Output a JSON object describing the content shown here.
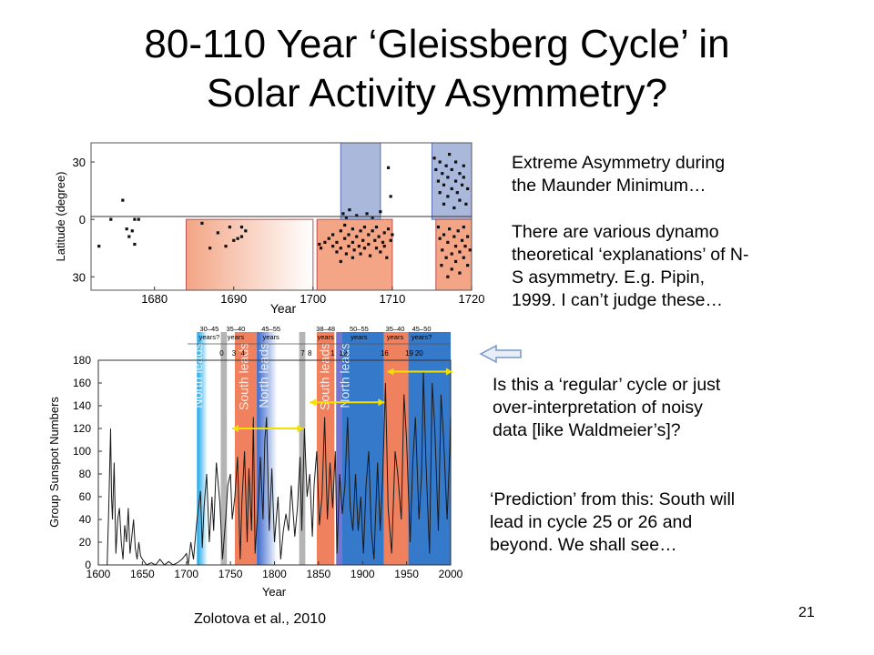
{
  "slide": {
    "title_line1": "80-110 Year ‘Gleissberg Cycle’ in",
    "title_line2": "Solar Activity Asymmetry?",
    "note1_line1": "Extreme Asymmetry during",
    "note1_line2": "the Maunder Minimum…",
    "note2_line1": "There are various dynamo",
    "note2_line2": "theoretical ‘explanations’ of N-",
    "note2_line3": "S asymmetry. E.g. Pipin,",
    "note2_line4": "1999. I can’t judge these…",
    "note3_line1": "Is this a ‘regular’ cycle or just",
    "note3_line2": "over-interpretation of noisy",
    "note3_line3": "data [like Waldmeier’s]?",
    "note4_line1": "‘Prediction’ from this: South will",
    "note4_line2": "lead in cycle 25 or 26 and",
    "note4_line3": "beyond. We shall see…",
    "citation": "Zolotova et al., 2010",
    "page_number": "21",
    "arrow_icon": "left-arrow-icon"
  },
  "chart_data": [
    {
      "type": "scatter",
      "xlabel": "Year",
      "ylabel": "Latitude (degree)",
      "xlim": [
        1672,
        1720
      ],
      "ylim": [
        -37,
        40
      ],
      "xticks": [
        "1680",
        "1690",
        "1700",
        "1710",
        "1720"
      ],
      "yticks": [
        "30",
        "0",
        "30"
      ],
      "shaded_regions": [
        {
          "hemisphere": "south",
          "from": 1684,
          "to": 1700,
          "color": "#f3a585"
        },
        {
          "hemisphere": "south",
          "from": 1700.5,
          "to": 1710,
          "color": "#f3a585"
        },
        {
          "hemisphere": "north",
          "from": 1703.5,
          "to": 1708.5,
          "color": "#aab8dc"
        },
        {
          "hemisphere": "north",
          "from": 1715,
          "to": 1720,
          "color": "#aab8dc"
        },
        {
          "hemisphere": "south",
          "from": 1715.5,
          "to": 1720,
          "color": "#f3a585"
        }
      ],
      "points": [
        [
          1673,
          -14
        ],
        [
          1674.5,
          0
        ],
        [
          1676,
          10
        ],
        [
          1676.5,
          -5
        ],
        [
          1676.8,
          -9
        ],
        [
          1677.2,
          -6
        ],
        [
          1677.5,
          -13
        ],
        [
          1677.5,
          0
        ],
        [
          1678,
          0
        ],
        [
          1686,
          -2
        ],
        [
          1687,
          -15
        ],
        [
          1688,
          -7
        ],
        [
          1689,
          -14
        ],
        [
          1689.5,
          -4
        ],
        [
          1690,
          -11
        ],
        [
          1690.5,
          -10
        ],
        [
          1691,
          -9
        ],
        [
          1691,
          -4
        ],
        [
          1691.5,
          -6
        ],
        [
          1700.8,
          -13
        ],
        [
          1701,
          -15
        ],
        [
          1701.5,
          -12
        ],
        [
          1702,
          -10
        ],
        [
          1702.5,
          -14
        ],
        [
          1702.5,
          -8
        ],
        [
          1703,
          -17
        ],
        [
          1703,
          -12
        ],
        [
          1703.5,
          -6
        ],
        [
          1703.5,
          -15
        ],
        [
          1703.5,
          -22
        ],
        [
          1704,
          -3
        ],
        [
          1704,
          -10
        ],
        [
          1704.2,
          -18
        ],
        [
          1704.5,
          -8
        ],
        [
          1704.5,
          -14
        ],
        [
          1705,
          -5
        ],
        [
          1705,
          -12
        ],
        [
          1705,
          -20
        ],
        [
          1705.2,
          -16
        ],
        [
          1705.5,
          -9
        ],
        [
          1705.8,
          -14
        ],
        [
          1706,
          -6
        ],
        [
          1706,
          -18
        ],
        [
          1706.3,
          -11
        ],
        [
          1706.5,
          -4
        ],
        [
          1706.5,
          -15
        ],
        [
          1707,
          -8
        ],
        [
          1707,
          -13
        ],
        [
          1707.2,
          -19
        ],
        [
          1707.5,
          -6
        ],
        [
          1707.8,
          -11
        ],
        [
          1708,
          -15
        ],
        [
          1708,
          -4
        ],
        [
          1708.3,
          -9
        ],
        [
          1708.5,
          -17
        ],
        [
          1708.8,
          -12
        ],
        [
          1709,
          -7
        ],
        [
          1709,
          -14
        ],
        [
          1709.3,
          -20
        ],
        [
          1709.5,
          -5
        ],
        [
          1709.8,
          -11
        ],
        [
          1710,
          -8
        ],
        [
          1703.8,
          3
        ],
        [
          1704.2,
          1
        ],
        [
          1704.6,
          5
        ],
        [
          1705.5,
          2
        ],
        [
          1706.8,
          3
        ],
        [
          1707.5,
          1
        ],
        [
          1708.5,
          4
        ],
        [
          1709.5,
          27
        ],
        [
          1709.8,
          12
        ],
        [
          1715.3,
          32
        ],
        [
          1715.5,
          26
        ],
        [
          1715.8,
          20
        ],
        [
          1716,
          30
        ],
        [
          1716,
          14
        ],
        [
          1716.3,
          24
        ],
        [
          1716.5,
          18
        ],
        [
          1716.5,
          8
        ],
        [
          1716.8,
          28
        ],
        [
          1717,
          22
        ],
        [
          1717,
          12
        ],
        [
          1717.2,
          34
        ],
        [
          1717.5,
          16
        ],
        [
          1717.5,
          26
        ],
        [
          1717.8,
          6
        ],
        [
          1718,
          20
        ],
        [
          1718,
          30
        ],
        [
          1718.2,
          14
        ],
        [
          1718.5,
          24
        ],
        [
          1718.5,
          10
        ],
        [
          1718.8,
          18
        ],
        [
          1719,
          28
        ],
        [
          1719,
          22
        ],
        [
          1719.3,
          8
        ],
        [
          1719.5,
          16
        ],
        [
          1715.8,
          -4
        ],
        [
          1716,
          -10
        ],
        [
          1716.3,
          -16
        ],
        [
          1716.5,
          -8
        ],
        [
          1716.8,
          -20
        ],
        [
          1717,
          -12
        ],
        [
          1717.2,
          -5
        ],
        [
          1717.5,
          -18
        ],
        [
          1717.5,
          -26
        ],
        [
          1717.8,
          -9
        ],
        [
          1718,
          -14
        ],
        [
          1718,
          -22
        ],
        [
          1718.3,
          -6
        ],
        [
          1718.5,
          -17
        ],
        [
          1718.5,
          -28
        ],
        [
          1718.8,
          -11
        ],
        [
          1719,
          -20
        ],
        [
          1719,
          -4
        ],
        [
          1719.2,
          -14
        ],
        [
          1719.5,
          -24
        ],
        [
          1719.5,
          -9
        ],
        [
          1719.8,
          -16
        ],
        [
          1717,
          -30
        ],
        [
          1716.2,
          -24
        ]
      ]
    },
    {
      "type": "line",
      "xlabel": "Year",
      "ylabel": "Group Sunspot Numbers",
      "xlim": [
        1600,
        2000
      ],
      "ylim": [
        0,
        180
      ],
      "xticks": [
        "1600",
        "1650",
        "1700",
        "1750",
        "1800",
        "1850",
        "1900",
        "1950",
        "2000"
      ],
      "yticks": [
        "0",
        "20",
        "40",
        "60",
        "80",
        "100",
        "120",
        "140",
        "160",
        "180"
      ],
      "cycle_labels": [
        "0",
        "3",
        "4",
        "7",
        "8",
        "1",
        "12",
        "16",
        "19",
        "20"
      ],
      "duration_labels": [
        {
          "line1": "30–45",
          "line2": "years?"
        },
        {
          "line1": "35–40",
          "line2": "years"
        },
        {
          "line1": "45–55",
          "line2": "years"
        },
        {
          "line1": "38–48",
          "line2": "years"
        },
        {
          "line1": "50–55",
          "line2": "years"
        },
        {
          "line1": "35–40",
          "line2": "years"
        },
        {
          "line1": "45–50",
          "line2": "years?"
        }
      ],
      "band_labels": [
        "North leads",
        "South leads",
        "North leads",
        "South leads",
        "North leads"
      ],
      "shaded_regions": [
        {
          "label": "North leads",
          "from": 1712,
          "to": 1724,
          "color": "#18a9e6"
        },
        {
          "label": "gray",
          "from": 1739,
          "to": 1746,
          "color": "#b0b0b0"
        },
        {
          "label": "South leads",
          "from": 1755,
          "to": 1780,
          "color": "#ef7a55"
        },
        {
          "label": "North leads",
          "from": 1780,
          "to": 1803,
          "color": "#3f6fd0"
        },
        {
          "label": "gray",
          "from": 1828,
          "to": 1835,
          "color": "#b0b0b0"
        },
        {
          "label": "South leads",
          "from": 1848,
          "to": 1868,
          "color": "#ef7a55"
        },
        {
          "label": "North leads",
          "from": 1870,
          "to": 1877,
          "color": "#6d6fd0"
        },
        {
          "label": "North leads",
          "from": 1877,
          "to": 1924,
          "color": "#2a72c8"
        },
        {
          "label": "South leads",
          "from": 1924,
          "to": 1952,
          "color": "#ef7a55"
        },
        {
          "label": "North leads",
          "from": 1952,
          "to": 2000,
          "color": "#2a72c8"
        }
      ],
      "arrows": [
        {
          "from": 1752,
          "to": 1833,
          "value": 120
        },
        {
          "from": 1840,
          "to": 1925,
          "value": 143
        },
        {
          "from": 1928,
          "to": 2002,
          "value": 170
        }
      ],
      "series": [
        {
          "x": [
            1610,
            1612,
            1614,
            1615,
            1616,
            1618,
            1620,
            1622,
            1624,
            1626,
            1628,
            1630,
            1632,
            1634,
            1636,
            1638,
            1640,
            1642,
            1644,
            1646,
            1648,
            1650,
            1655,
            1660,
            1665,
            1670,
            1675,
            1680,
            1685,
            1690,
            1695,
            1700,
            1702,
            1705,
            1708,
            1712,
            1716,
            1718,
            1720,
            1723,
            1726,
            1729,
            1731,
            1734,
            1738,
            1741,
            1745,
            1747,
            1750,
            1752,
            1755,
            1758,
            1761,
            1763,
            1766,
            1769,
            1771,
            1774,
            1776,
            1778,
            1782,
            1784,
            1787,
            1789,
            1791,
            1794,
            1797,
            1800,
            1804,
            1807,
            1810,
            1813,
            1816,
            1819,
            1823,
            1826,
            1829,
            1831,
            1834,
            1837,
            1840,
            1843,
            1845,
            1848,
            1851,
            1854,
            1857,
            1860,
            1863,
            1866,
            1869,
            1871,
            1874,
            1877,
            1880,
            1883,
            1886,
            1889,
            1892,
            1895,
            1898,
            1901,
            1904,
            1907,
            1910,
            1913,
            1917,
            1920,
            1923,
            1926,
            1929,
            1933,
            1937,
            1940,
            1944,
            1947,
            1950,
            1954,
            1957,
            1960,
            1964,
            1967,
            1969,
            1972,
            1976,
            1979,
            1982,
            1986,
            1989,
            1992,
            1996,
            1999,
            2000
          ],
          "y": [
            0,
            55,
            120,
            60,
            40,
            90,
            10,
            40,
            50,
            20,
            5,
            35,
            20,
            50,
            10,
            25,
            40,
            15,
            5,
            20,
            8,
            5,
            0,
            2,
            0,
            5,
            0,
            3,
            0,
            2,
            5,
            10,
            0,
            20,
            5,
            40,
            65,
            15,
            50,
            80,
            20,
            60,
            30,
            90,
            55,
            5,
            45,
            70,
            80,
            40,
            60,
            95,
            5,
            55,
            100,
            20,
            85,
            30,
            130,
            10,
            60,
            95,
            40,
            110,
            130,
            30,
            85,
            20,
            60,
            5,
            30,
            45,
            30,
            70,
            25,
            50,
            95,
            30,
            120,
            60,
            80,
            25,
            70,
            100,
            35,
            60,
            130,
            40,
            90,
            50,
            100,
            10,
            80,
            45,
            70,
            130,
            50,
            30,
            80,
            30,
            60,
            10,
            70,
            100,
            30,
            5,
            90,
            30,
            80,
            160,
            50,
            10,
            100,
            80,
            40,
            150,
            110,
            20,
            90,
            130,
            40,
            80,
            170,
            90,
            10,
            160,
            120,
            30,
            150,
            110,
            40,
            100,
            130
          ]
        }
      ]
    }
  ]
}
